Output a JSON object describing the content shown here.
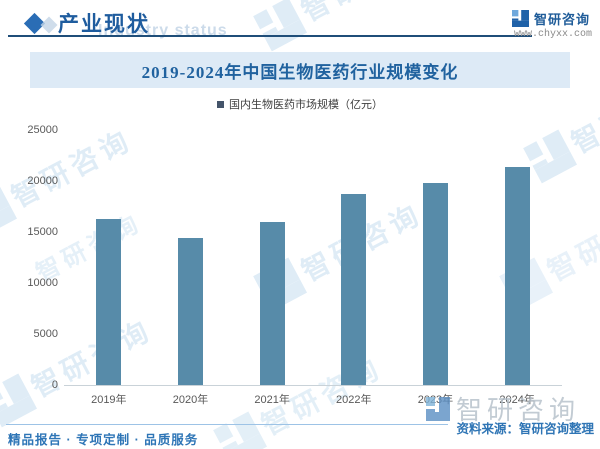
{
  "header": {
    "title": "产业现状",
    "watermark_en": "Industry status",
    "brand": "智研咨询",
    "website": "www.chyxx.com"
  },
  "legend": {
    "label": "国内生物医药市场规模（亿元）"
  },
  "chart_data": {
    "type": "bar",
    "title": "2019-2024年中国生物医药行业规模变化",
    "categories": [
      "2019年",
      "2020年",
      "2021年",
      "2022年",
      "2023年",
      "2024年"
    ],
    "values": [
      16300,
      14400,
      16000,
      18700,
      19800,
      21400
    ],
    "series_name": "国内生物医药市场规模（亿元）",
    "ylabel": "",
    "xlabel": "",
    "ylim": [
      0,
      25000
    ],
    "yticks": [
      0,
      5000,
      10000,
      15000,
      20000,
      25000
    ],
    "bar_color": "#578ba9",
    "grid": false,
    "legend_position": "top"
  },
  "footer": {
    "services": "精品报告 · 专项定制 · 品质服务",
    "source": "资料来源：智研咨询整理"
  },
  "watermark": {
    "brand": "智研咨询"
  }
}
